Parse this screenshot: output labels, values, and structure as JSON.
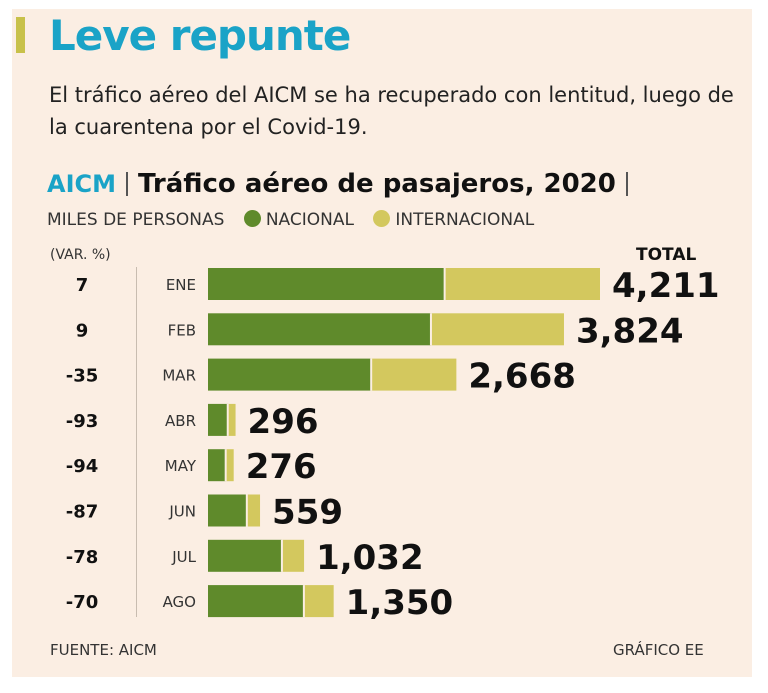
{
  "headline": "Leve repunte",
  "subtitle": "El tráfico aéreo del AICM se ha recuperado con lentitud, luego de la cuarentena por el Covid-19.",
  "colors": {
    "accent": "#1aa3c7",
    "title_bar": "#c8c14a",
    "nacional": "#5f8a2b",
    "internacional": "#d3c85e",
    "card_bg": "#fbeee3"
  },
  "chart_data": {
    "type": "bar",
    "orientation": "horizontal",
    "stacked": true,
    "source_label": "AICM",
    "title": "Tráfico aéreo de pasajeros, 2020",
    "units": "MILES DE PERSONAS",
    "var_header": "(VAR. %)",
    "total_header": "TOTAL",
    "categories": [
      "ENE",
      "FEB",
      "MAR",
      "ABR",
      "MAY",
      "JUN",
      "JUL",
      "AGO"
    ],
    "series": [
      {
        "name": "NACIONAL",
        "values": [
          2542,
          2395,
          1753,
          212,
          190,
          417,
          794,
          1030
        ]
      },
      {
        "name": "INTERNACIONAL",
        "values": [
          1669,
          1429,
          915,
          84,
          86,
          142,
          238,
          320
        ]
      }
    ],
    "totals": [
      4211,
      3824,
      2668,
      296,
      276,
      559,
      1032,
      1350
    ],
    "total_labels": [
      "4,211",
      "3,824",
      "2,668",
      "296",
      "276",
      "559",
      "1,032",
      "1,350"
    ],
    "var_pct": [
      "7",
      "9",
      "-35",
      "-93",
      "-94",
      "-87",
      "-78",
      "-70"
    ],
    "xlim": [
      0,
      4211
    ]
  },
  "footer": {
    "source": "FUENTE: AICM",
    "credit": "GRÁFICO EE"
  }
}
